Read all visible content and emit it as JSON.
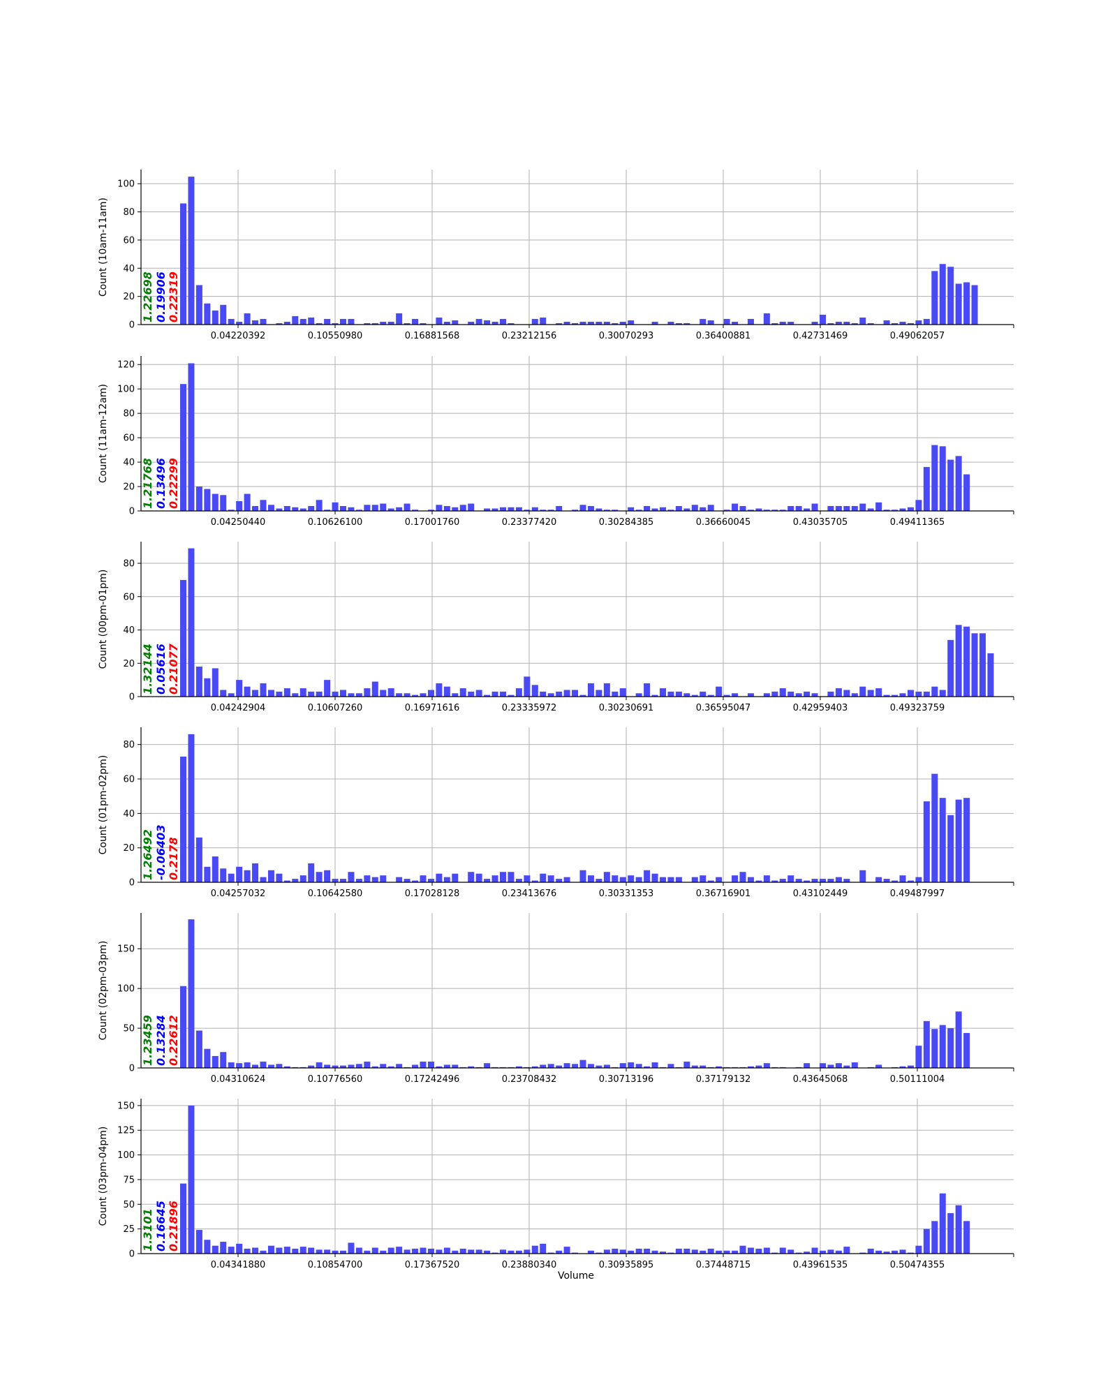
{
  "figure": {
    "xlabel": "Volume"
  },
  "colors": {
    "bar": "#4a4af4",
    "grid": "#b0b0b0",
    "axis": "#000000",
    "stat1": "#008000",
    "stat2": "#0000ff",
    "stat3": "#ff0000"
  },
  "chart_data": [
    {
      "type": "bar",
      "ylabel": "Count (10am-11am)",
      "ylim": [
        0,
        110
      ],
      "yticks": [
        0,
        20,
        40,
        60,
        80,
        100
      ],
      "xtick_labels": [
        "0.04220392",
        "0.10550980",
        "0.16881568",
        "0.23212156",
        "0.30070293",
        "0.36400881",
        "0.42731469",
        "0.49062057"
      ],
      "stats": [
        "1.22698",
        "0.19906",
        "0.22319"
      ],
      "values": [
        86,
        105,
        28,
        15,
        10,
        14,
        4,
        2,
        8,
        3,
        4,
        0,
        1,
        2,
        6,
        4,
        5,
        1,
        4,
        1,
        4,
        4,
        0,
        1,
        1,
        2,
        2,
        8,
        1,
        4,
        1,
        0,
        5,
        2,
        3,
        0,
        2,
        4,
        3,
        2,
        4,
        1,
        0,
        0,
        4,
        5,
        0,
        1,
        2,
        1,
        2,
        2,
        2,
        2,
        1,
        2,
        3,
        0,
        0,
        2,
        0,
        2,
        1,
        1,
        0,
        4,
        3,
        0,
        4,
        2,
        0,
        4,
        0,
        8,
        1,
        2,
        2,
        0,
        0,
        2,
        7,
        1,
        2,
        2,
        1,
        5,
        1,
        0,
        3,
        1,
        2,
        1,
        3,
        4,
        38,
        43,
        41,
        29,
        30,
        28
      ]
    },
    {
      "type": "bar",
      "ylabel": "Count (11am-12am)",
      "ylim": [
        0,
        127
      ],
      "yticks": [
        0,
        20,
        40,
        60,
        80,
        100,
        120
      ],
      "xtick_labels": [
        "0.04250440",
        "0.10626100",
        "0.17001760",
        "0.23377420",
        "0.30284385",
        "0.36660045",
        "0.43035705",
        "0.49411365"
      ],
      "stats": [
        "1.21768",
        "0.13496",
        "0.22299"
      ],
      "values": [
        104,
        121,
        20,
        18,
        14,
        13,
        1,
        8,
        14,
        4,
        9,
        5,
        2,
        4,
        3,
        2,
        4,
        9,
        1,
        7,
        4,
        3,
        1,
        5,
        5,
        6,
        2,
        3,
        6,
        1,
        0,
        1,
        5,
        4,
        3,
        5,
        6,
        0,
        2,
        2,
        3,
        3,
        3,
        1,
        3,
        1,
        1,
        4,
        0,
        1,
        5,
        4,
        2,
        1,
        1,
        0,
        3,
        1,
        4,
        2,
        3,
        1,
        4,
        2,
        5,
        3,
        5,
        0,
        1,
        6,
        4,
        1,
        2,
        1,
        1,
        1,
        4,
        4,
        2,
        6,
        0,
        4,
        4,
        4,
        4,
        6,
        2,
        7,
        1,
        1,
        2,
        3,
        9,
        36,
        54,
        53,
        42,
        45,
        30
      ]
    },
    {
      "type": "bar",
      "ylabel": "Count (00pm-01pm)",
      "ylim": [
        0,
        93
      ],
      "yticks": [
        0,
        20,
        40,
        60,
        80
      ],
      "xtick_labels": [
        "0.04242904",
        "0.10607260",
        "0.16971616",
        "0.23335972",
        "0.30230691",
        "0.36595047",
        "0.42959403",
        "0.49323759"
      ],
      "stats": [
        "1.32144",
        "0.05616",
        "0.21077"
      ],
      "values": [
        70,
        89,
        18,
        11,
        17,
        4,
        2,
        10,
        6,
        4,
        8,
        4,
        3,
        5,
        2,
        5,
        3,
        3,
        10,
        3,
        4,
        2,
        2,
        5,
        9,
        4,
        5,
        2,
        2,
        1,
        2,
        4,
        8,
        6,
        2,
        5,
        3,
        4,
        1,
        3,
        3,
        1,
        5,
        12,
        7,
        3,
        2,
        3,
        4,
        4,
        1,
        8,
        4,
        8,
        3,
        5,
        0,
        2,
        8,
        1,
        5,
        3,
        3,
        2,
        1,
        3,
        1,
        6,
        1,
        2,
        0,
        2,
        0,
        2,
        3,
        5,
        3,
        2,
        3,
        2,
        0,
        3,
        5,
        4,
        2,
        6,
        4,
        5,
        1,
        1,
        2,
        4,
        3,
        3,
        6,
        4,
        34,
        43,
        42,
        38,
        38,
        26
      ]
    },
    {
      "type": "bar",
      "ylabel": "Count (01pm-02pm)",
      "ylim": [
        0,
        90
      ],
      "yticks": [
        0,
        20,
        40,
        60,
        80
      ],
      "xtick_labels": [
        "0.04257032",
        "0.10642580",
        "0.17028128",
        "0.23413676",
        "0.30331353",
        "0.36716901",
        "0.43102449",
        "0.49487997"
      ],
      "stats": [
        "1.26492",
        "-0.06403",
        "0.2178"
      ],
      "values": [
        73,
        86,
        26,
        9,
        15,
        8,
        5,
        9,
        7,
        11,
        3,
        7,
        5,
        1,
        2,
        4,
        11,
        6,
        7,
        2,
        2,
        6,
        2,
        4,
        3,
        4,
        0,
        3,
        2,
        1,
        4,
        2,
        5,
        3,
        5,
        0,
        6,
        5,
        2,
        4,
        6,
        6,
        2,
        4,
        1,
        5,
        4,
        2,
        3,
        0,
        7,
        4,
        2,
        6,
        4,
        3,
        4,
        3,
        7,
        5,
        3,
        3,
        3,
        0,
        3,
        4,
        1,
        3,
        0,
        4,
        6,
        3,
        1,
        4,
        1,
        2,
        4,
        2,
        1,
        2,
        2,
        2,
        3,
        2,
        0,
        7,
        0,
        3,
        2,
        1,
        4,
        1,
        3,
        47,
        63,
        49,
        39,
        48,
        49
      ]
    },
    {
      "type": "bar",
      "ylabel": "Count (02pm-03pm)",
      "ylim": [
        0,
        195
      ],
      "yticks": [
        0,
        50,
        100,
        150
      ],
      "xtick_labels": [
        "0.04310624",
        "0.10776560",
        "0.17242496",
        "0.23708432",
        "0.30713196",
        "0.37179132",
        "0.43645068",
        "0.50111004"
      ],
      "stats": [
        "1.23459",
        "0.13284",
        "0.22612"
      ],
      "values": [
        103,
        187,
        47,
        24,
        15,
        20,
        7,
        6,
        7,
        4,
        8,
        4,
        5,
        2,
        1,
        1,
        3,
        7,
        4,
        3,
        3,
        4,
        5,
        8,
        2,
        5,
        2,
        5,
        1,
        4,
        8,
        8,
        2,
        4,
        4,
        1,
        2,
        1,
        6,
        1,
        1,
        1,
        2,
        1,
        2,
        4,
        5,
        3,
        6,
        5,
        10,
        5,
        3,
        4,
        1,
        6,
        7,
        5,
        2,
        7,
        1,
        5,
        1,
        8,
        3,
        3,
        1,
        2,
        1,
        1,
        1,
        2,
        3,
        6,
        1,
        1,
        0,
        1,
        6,
        0,
        6,
        4,
        6,
        3,
        7,
        0,
        1,
        4,
        0,
        1,
        2,
        3,
        28,
        59,
        49,
        54,
        50,
        71,
        44
      ]
    },
    {
      "type": "bar",
      "ylabel": "Count (03pm-04pm)",
      "ylim": [
        0,
        157
      ],
      "yticks": [
        0,
        25,
        50,
        75,
        100,
        125,
        150
      ],
      "xtick_labels": [
        "0.04341880",
        "0.10854700",
        "0.17367520",
        "0.23880340",
        "0.30935895",
        "0.37448715",
        "0.43961535",
        "0.50474355"
      ],
      "stats": [
        "1.3101",
        "0.16645",
        "0.21896"
      ],
      "values": [
        71,
        150,
        24,
        14,
        8,
        12,
        7,
        10,
        5,
        6,
        3,
        8,
        6,
        7,
        5,
        7,
        6,
        4,
        4,
        3,
        3,
        11,
        6,
        3,
        6,
        3,
        6,
        7,
        4,
        5,
        6,
        5,
        4,
        6,
        3,
        5,
        4,
        4,
        3,
        1,
        4,
        3,
        3,
        4,
        8,
        10,
        1,
        3,
        7,
        1,
        0,
        3,
        1,
        4,
        5,
        4,
        3,
        5,
        5,
        3,
        2,
        1,
        5,
        5,
        4,
        3,
        5,
        3,
        3,
        3,
        8,
        6,
        5,
        6,
        1,
        6,
        4,
        1,
        2,
        6,
        3,
        4,
        3,
        7,
        0,
        1,
        5,
        3,
        2,
        3,
        4,
        1,
        8,
        25,
        33,
        61,
        41,
        49,
        33
      ]
    }
  ]
}
